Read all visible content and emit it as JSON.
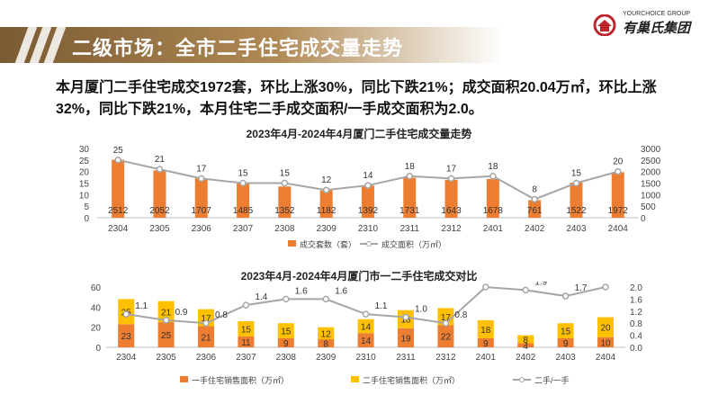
{
  "header": {
    "title": "二级市场：全市二手住宅成交量走势",
    "logo_en": "YOURCHOICE GROUP",
    "logo_cn": "有巢氏集团"
  },
  "summary": "本月厦门二手住宅成交1972套，环比上涨30%，同比下跌21%；成交面积20.04万㎡，环比上涨32%，同比下跌21%，本月住宅二手成交面积/一手成交面积为2.0。",
  "colors": {
    "orange": "#ED7D31",
    "yellow": "#FFC000",
    "gray_line": "#A6A6A6",
    "brand": "#9C7446"
  },
  "chart_data": [
    {
      "type": "bar",
      "title": "2023年4月-2024年4月厦门二手住宅成交量走势",
      "categories": [
        "2304",
        "2305",
        "2306",
        "2307",
        "2308",
        "2309",
        "2310",
        "2311",
        "2312",
        "2401",
        "2402",
        "2403",
        "2404"
      ],
      "series": [
        {
          "name": "成交套数（套）",
          "axis": "right",
          "values": [
            2512,
            2052,
            1707,
            1485,
            1352,
            1182,
            1392,
            1731,
            1643,
            1678,
            761,
            1522,
            1972
          ]
        },
        {
          "name": "成交面积（万㎡）",
          "type": "line",
          "axis": "left",
          "values": [
            25,
            21,
            17,
            15,
            15,
            12,
            14,
            18,
            17,
            18,
            8,
            15,
            20
          ]
        }
      ],
      "ylim_left": [
        0,
        30
      ],
      "yticks_left": [
        0,
        5,
        10,
        15,
        20,
        25,
        30
      ],
      "ylim_right": [
        0,
        3000
      ],
      "yticks_right": [
        0,
        500,
        1000,
        1500,
        2000,
        2500,
        3000
      ],
      "legend": "bottom"
    },
    {
      "type": "bar",
      "title": "2023年4月-2024年4月厦门市一二手住宅成交对比",
      "categories": [
        "2304",
        "2305",
        "2306",
        "2307",
        "2308",
        "2309",
        "2310",
        "2311",
        "2312",
        "2401",
        "2402",
        "2403",
        "2404"
      ],
      "series": [
        {
          "name": "一手住宅销售面积（万㎡）",
          "stacked": true,
          "axis": "left",
          "values": [
            23,
            25,
            21,
            11,
            9,
            8,
            14,
            19,
            22,
            9,
            4,
            9,
            10
          ]
        },
        {
          "name": "二手住宅销售面积（万㎡）",
          "stacked": true,
          "axis": "left",
          "values": [
            25,
            21,
            17,
            15,
            15,
            12,
            14,
            18,
            17,
            18,
            8,
            15,
            20
          ]
        },
        {
          "name": "二手/一手",
          "type": "line",
          "axis": "right",
          "values": [
            1.1,
            0.9,
            0.8,
            1.4,
            1.6,
            1.6,
            1.1,
            1.0,
            0.8,
            2.0,
            1.9,
            1.7,
            2.0
          ]
        }
      ],
      "ylim_left": [
        0,
        60
      ],
      "yticks_left": [
        0,
        20,
        40,
        60
      ],
      "ylim_right": [
        0,
        2.0
      ],
      "yticks_right": [
        "0.0",
        "0.4",
        "0.8",
        "1.2",
        "1.6",
        "2.0"
      ],
      "legend": "bottom"
    }
  ]
}
